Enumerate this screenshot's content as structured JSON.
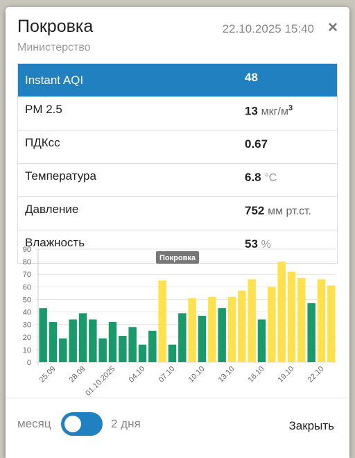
{
  "header": {
    "title": "Покровка",
    "subtitle": "Министерство",
    "datetime": "22.10.2025 15:40",
    "close_icon": "×"
  },
  "table": {
    "rows": [
      {
        "label": "Instant AQI",
        "value": 48
      },
      {
        "label": "PM 2.5",
        "value": 13,
        "unit": "мкг/м",
        "unit_sup": "3"
      },
      {
        "label": "ПДКсс",
        "value": 0.67
      },
      {
        "label": "Температура",
        "value": 6.8,
        "unit": "°C"
      },
      {
        "label": "Давление",
        "value": 752,
        "unit": "мм рт.ст."
      },
      {
        "label": "Влажность",
        "value": 53,
        "unit": "%"
      }
    ]
  },
  "chart_data": {
    "type": "bar",
    "title": "Покровка",
    "categories": [
      null,
      "25.09",
      null,
      null,
      "28.09",
      null,
      null,
      "01.10.2025",
      null,
      null,
      "04.10",
      null,
      null,
      "07.10",
      null,
      null,
      "10.10",
      null,
      null,
      "13.10",
      null,
      null,
      "16.10",
      null,
      null,
      "19.10",
      null,
      null,
      "22.10",
      null
    ],
    "values": [
      43,
      32,
      19,
      34,
      39,
      34,
      19,
      32,
      21,
      28,
      14,
      25,
      65,
      14,
      39,
      51,
      37,
      52,
      43,
      52,
      57,
      66,
      34,
      60,
      80,
      72,
      67,
      47,
      66,
      61
    ],
    "colors": [
      "#1a9a6b",
      "#1a9a6b",
      "#1a9a6b",
      "#1a9a6b",
      "#1a9a6b",
      "#1a9a6b",
      "#1a9a6b",
      "#1a9a6b",
      "#1a9a6b",
      "#1a9a6b",
      "#1a9a6b",
      "#1a9a6b",
      "#fde14e",
      "#1a9a6b",
      "#1a9a6b",
      "#fde14e",
      "#1a9a6b",
      "#fde14e",
      "#1a9a6b",
      "#fde14e",
      "#fde14e",
      "#fde14e",
      "#1a9a6b",
      "#fde14e",
      "#fde14e",
      "#fde14e",
      "#fde14e",
      "#1a9a6b",
      "#fde14e",
      "#fde14e"
    ],
    "ylim": [
      0,
      90
    ],
    "yticks": [
      0,
      10,
      20,
      30,
      40,
      50,
      60,
      70,
      80,
      90
    ],
    "grid": true
  },
  "footer": {
    "toggle_left": "месяц",
    "toggle_right": "2 дня",
    "close_button": "Закрыть"
  }
}
